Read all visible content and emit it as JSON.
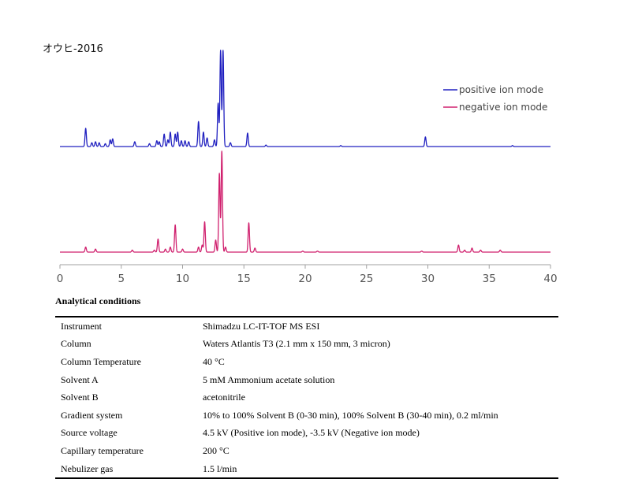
{
  "figure": {
    "title": "オウヒ-2016"
  },
  "chart_data": {
    "type": "line",
    "xlim": [
      0,
      40
    ],
    "x_ticks": [
      0,
      5,
      10,
      15,
      20,
      25,
      30,
      35,
      40
    ],
    "xlabel": "",
    "ylabel": "",
    "grid": false,
    "legend_position": "top-right",
    "series": [
      {
        "name": "positive ion mode",
        "color": "#2020c0",
        "baseline_note": "upper trace",
        "peaks": [
          {
            "x": 2.1,
            "h": 0.19
          },
          {
            "x": 2.6,
            "h": 0.04
          },
          {
            "x": 2.9,
            "h": 0.05
          },
          {
            "x": 3.2,
            "h": 0.04
          },
          {
            "x": 3.7,
            "h": 0.03
          },
          {
            "x": 4.1,
            "h": 0.07
          },
          {
            "x": 4.3,
            "h": 0.08
          },
          {
            "x": 6.1,
            "h": 0.05
          },
          {
            "x": 7.3,
            "h": 0.03
          },
          {
            "x": 7.9,
            "h": 0.06
          },
          {
            "x": 8.1,
            "h": 0.05
          },
          {
            "x": 8.5,
            "h": 0.13
          },
          {
            "x": 8.8,
            "h": 0.07
          },
          {
            "x": 9.0,
            "h": 0.15
          },
          {
            "x": 9.4,
            "h": 0.13
          },
          {
            "x": 9.6,
            "h": 0.15
          },
          {
            "x": 9.9,
            "h": 0.06
          },
          {
            "x": 10.2,
            "h": 0.06
          },
          {
            "x": 10.5,
            "h": 0.05
          },
          {
            "x": 11.3,
            "h": 0.26
          },
          {
            "x": 11.7,
            "h": 0.15
          },
          {
            "x": 12.0,
            "h": 0.09
          },
          {
            "x": 12.6,
            "h": 0.07
          },
          {
            "x": 12.9,
            "h": 0.45
          },
          {
            "x": 13.1,
            "h": 1.0
          },
          {
            "x": 13.3,
            "h": 1.0
          },
          {
            "x": 13.9,
            "h": 0.04
          },
          {
            "x": 15.3,
            "h": 0.14
          },
          {
            "x": 16.8,
            "h": 0.015
          },
          {
            "x": 22.9,
            "h": 0.01
          },
          {
            "x": 29.8,
            "h": 0.1
          },
          {
            "x": 36.9,
            "h": 0.01
          }
        ]
      },
      {
        "name": "negative ion mode",
        "color": "#d0206e",
        "baseline_note": "lower trace",
        "peaks": [
          {
            "x": 2.1,
            "h": 0.05
          },
          {
            "x": 2.9,
            "h": 0.03
          },
          {
            "x": 5.9,
            "h": 0.02
          },
          {
            "x": 7.7,
            "h": 0.02
          },
          {
            "x": 8.0,
            "h": 0.13
          },
          {
            "x": 8.6,
            "h": 0.03
          },
          {
            "x": 9.0,
            "h": 0.05
          },
          {
            "x": 9.4,
            "h": 0.27
          },
          {
            "x": 10.0,
            "h": 0.03
          },
          {
            "x": 11.3,
            "h": 0.05
          },
          {
            "x": 11.6,
            "h": 0.07
          },
          {
            "x": 11.8,
            "h": 0.3
          },
          {
            "x": 12.7,
            "h": 0.12
          },
          {
            "x": 13.0,
            "h": 0.78
          },
          {
            "x": 13.2,
            "h": 1.0
          },
          {
            "x": 13.5,
            "h": 0.05
          },
          {
            "x": 15.4,
            "h": 0.29
          },
          {
            "x": 15.9,
            "h": 0.04
          },
          {
            "x": 19.8,
            "h": 0.01
          },
          {
            "x": 21.0,
            "h": 0.01
          },
          {
            "x": 29.5,
            "h": 0.01
          },
          {
            "x": 32.5,
            "h": 0.07
          },
          {
            "x": 33.0,
            "h": 0.02
          },
          {
            "x": 33.6,
            "h": 0.04
          },
          {
            "x": 34.3,
            "h": 0.02
          },
          {
            "x": 35.9,
            "h": 0.02
          }
        ]
      }
    ]
  },
  "conditions": {
    "heading": "Analytical conditions",
    "rows": [
      {
        "param": "Instrument",
        "value": "Shimadzu LC-IT-TOF MS ESI"
      },
      {
        "param": "Column",
        "value": "Waters Atlantis T3 (2.1 mm x 150 mm, 3 micron)"
      },
      {
        "param": "Column Temperature",
        "value": "40 °C"
      },
      {
        "param": "Solvent A",
        "value": "5 mM Ammonium acetate solution"
      },
      {
        "param": "Solvent B",
        "value": "acetonitrile"
      },
      {
        "param": "Gradient system",
        "value": "10% to 100% Solvent B (0-30 min), 100% Solvent B (30-40 min), 0.2 ml/min"
      },
      {
        "param": "Source voltage",
        "value": "4.5 kV (Positive ion mode), -3.5 kV (Negative ion mode)"
      },
      {
        "param": "Capillary temperature",
        "value": "200 °C"
      },
      {
        "param": "Nebulizer gas",
        "value": "1.5 l/min"
      }
    ]
  }
}
